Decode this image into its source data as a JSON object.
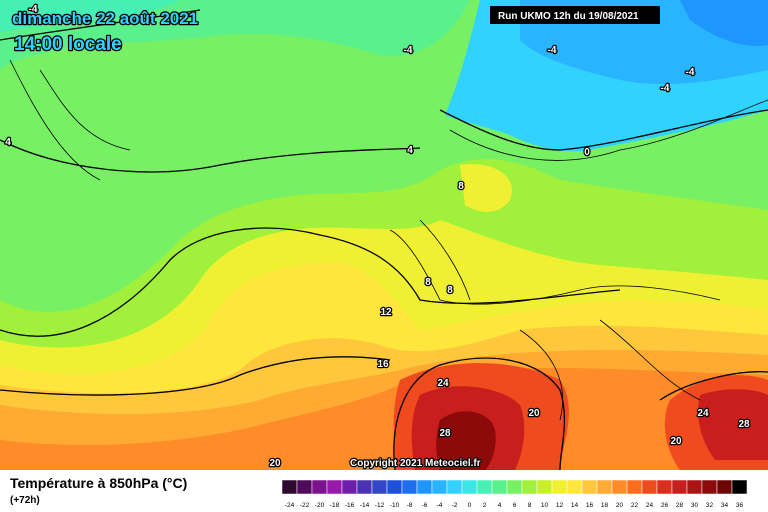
{
  "header": {
    "title": "dimanche 22 août 2021",
    "time": "14:00 locale",
    "run": "Run UKMO 12h du 19/08/2021",
    "copyright": "Copyright 2021 Meteociel.fr"
  },
  "legend": {
    "title": "Température à 850hPa (°C)",
    "lead": "(+72h)",
    "ticks": [
      -24,
      -22,
      -20,
      -18,
      -16,
      -14,
      -12,
      -10,
      -8,
      -6,
      -4,
      -2,
      0,
      2,
      4,
      6,
      8,
      10,
      12,
      14,
      16,
      18,
      20,
      22,
      24,
      26,
      28,
      30,
      32,
      34,
      36
    ],
    "colors": [
      "#2d0a2d",
      "#500a5a",
      "#7a148c",
      "#9619aa",
      "#6e1eaa",
      "#4b32b4",
      "#3246c8",
      "#1e50dc",
      "#1e6ef0",
      "#1e96ff",
      "#28b4ff",
      "#32d2ff",
      "#3ce6e6",
      "#46f0b4",
      "#5af08c",
      "#78f064",
      "#a0f03c",
      "#c8f028",
      "#f0f032",
      "#ffe63c",
      "#ffc83c",
      "#ffaa32",
      "#ff8c28",
      "#ff6e1e",
      "#f04b1e",
      "#dc2d1e",
      "#c81e1e",
      "#aa1414",
      "#8c0a0a",
      "#6e0505",
      "#000000"
    ]
  },
  "contour_labels": [
    "-4",
    "-4",
    "-4",
    "-4",
    "-4",
    "4",
    "4",
    "0",
    "8",
    "8",
    "8",
    "12",
    "16",
    "20",
    "20",
    "20",
    "24",
    "24",
    "28",
    "28"
  ]
}
